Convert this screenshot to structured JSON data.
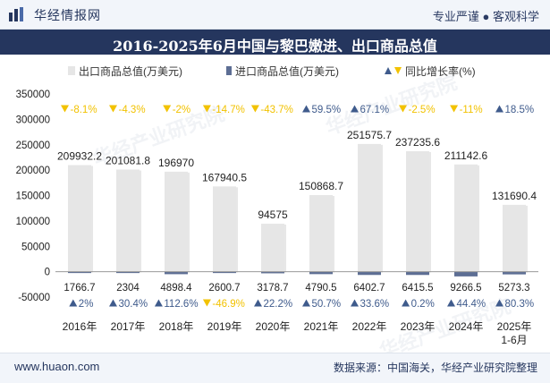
{
  "header": {
    "brand_name": "华经情报网",
    "slogan": "专业严谨 ● 客观科学"
  },
  "footer": {
    "website": "www.huaon.com",
    "source": "数据来源：中国海关，华经产业研究院整理"
  },
  "watermark": "华经产业研究院",
  "colors": {
    "export_bar": "#e6e6e6",
    "import_bar": "#5d6e94",
    "up": "#3f5b8c",
    "down": "#f2c200",
    "header_bg": "#25365e"
  },
  "chart_data": {
    "type": "bar",
    "title": "2016-2025年6月中国与黎巴嫩进、出口商品总值",
    "categories": [
      "2016年",
      "2017年",
      "2018年",
      "2019年",
      "2020年",
      "2021年",
      "2022年",
      "2023年",
      "2024年",
      "2025年\n1-6月"
    ],
    "series": [
      {
        "name": "出口商品总值(万美元)",
        "values": [
          209932.2,
          201081.8,
          196970,
          167940.5,
          94575,
          150868.7,
          251575.7,
          237235.6,
          211142.6,
          131690.4
        ],
        "labels": [
          "209932.2",
          "201081.8",
          "196970",
          "167940.5",
          "94575",
          "150868.7",
          "251575.7",
          "237235.6",
          "211142.6",
          "131690.4"
        ]
      },
      {
        "name": "进口商品总值(万美元)",
        "values": [
          1766.7,
          2304,
          4898.4,
          2600.7,
          3178.7,
          4790.5,
          6402.7,
          6415.5,
          9266.5,
          5273.3
        ],
        "labels": [
          "1766.7",
          "2304",
          "4898.4",
          "2600.7",
          "3178.7",
          "4790.5",
          "6402.7",
          "6415.5",
          "9266.5",
          "5273.3"
        ]
      },
      {
        "name": "同比增长率(%)",
        "export_growth": [
          -8.1,
          -4.3,
          -2,
          -14.7,
          -43.7,
          59.5,
          67.1,
          -2.5,
          -11,
          18.5
        ],
        "export_growth_labels": [
          "-8.1%",
          "-4.3%",
          "-2%",
          "-14.7%",
          "-43.7%",
          "59.5%",
          "67.1%",
          "-2.5%",
          "-11%",
          "18.5%"
        ],
        "import_growth": [
          2,
          30.4,
          112.6,
          -46.9,
          22.2,
          50.7,
          33.6,
          0.2,
          44.4,
          80.3
        ],
        "import_growth_labels": [
          "2%",
          "30.4%",
          "112.6%",
          "-46.9%",
          "22.2%",
          "50.7%",
          "33.6%",
          "0.2%",
          "44.4%",
          "80.3%"
        ]
      }
    ],
    "ylim": [
      -50000,
      350000
    ],
    "yticks": [
      -50000,
      0,
      50000,
      100000,
      150000,
      200000,
      250000,
      300000,
      350000
    ],
    "ytick_labels": [
      "-50000",
      "0",
      "50000",
      "100000",
      "150000",
      "200000",
      "250000",
      "300000",
      "350000"
    ],
    "legend_position": "top",
    "grid": false
  }
}
